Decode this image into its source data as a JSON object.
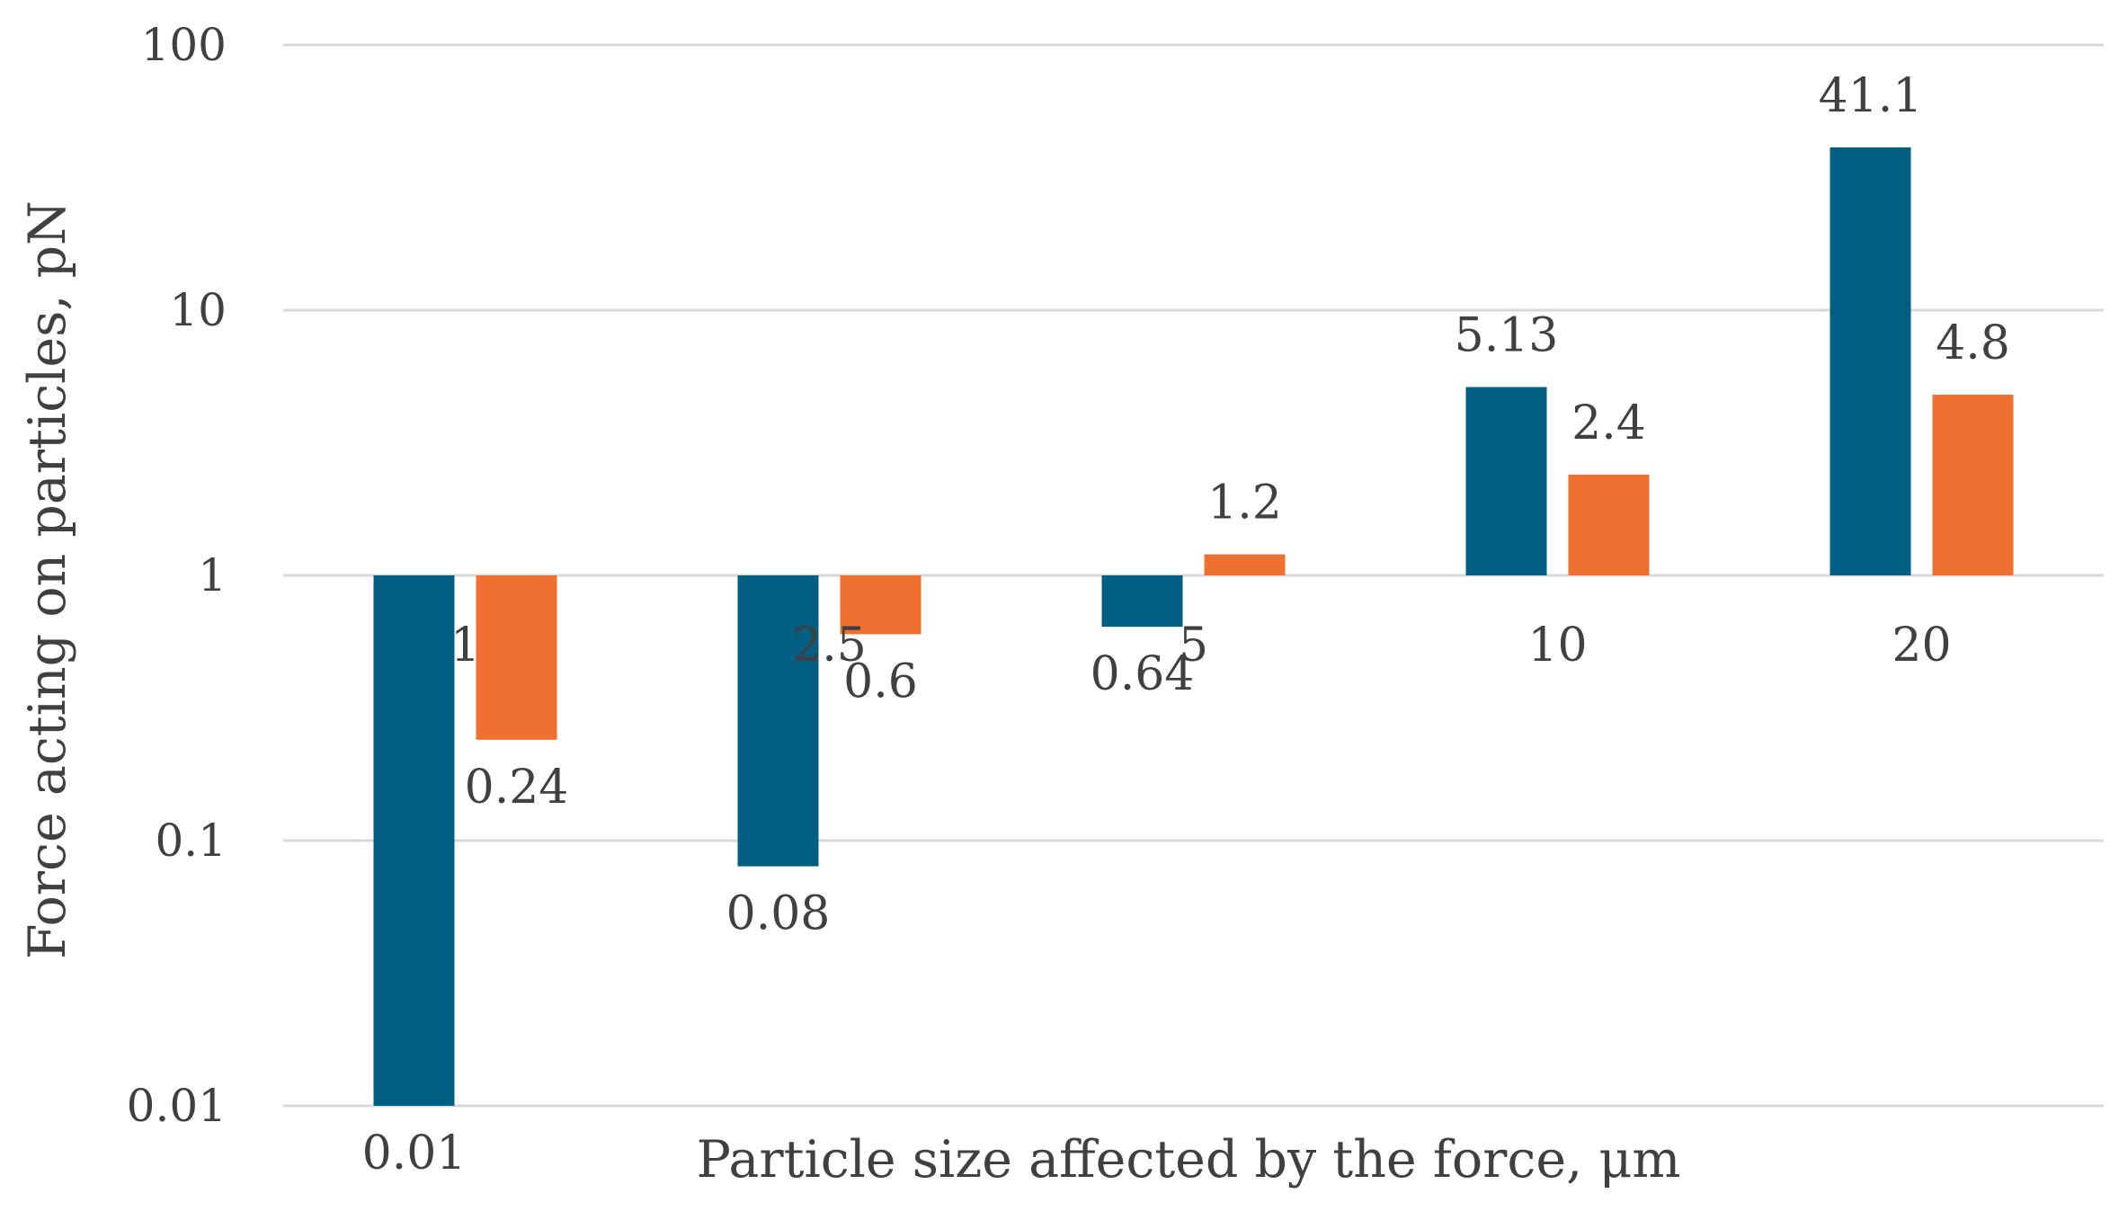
{
  "chart_data": {
    "type": "bar",
    "title": "",
    "xlabel": "Particle size affected by the force, μm",
    "ylabel": "Force acting on particles, pN",
    "yscale": "log",
    "ylim": [
      0.01,
      100
    ],
    "baseline": 1,
    "yticks": [
      {
        "value": 100,
        "label": "100"
      },
      {
        "value": 10,
        "label": "10"
      },
      {
        "value": 1,
        "label": "1"
      },
      {
        "value": 0.1,
        "label": "0.1"
      },
      {
        "value": 0.01,
        "label": "0.01"
      }
    ],
    "categories": [
      "1",
      "2.5",
      "5",
      "10",
      "20"
    ],
    "series": [
      {
        "name": "series-1",
        "color": "#005f83",
        "values": [
          0.01,
          0.08,
          0.64,
          5.13,
          41.1
        ],
        "labels": [
          "0.01",
          "0.08",
          "0.64",
          "5.13",
          "41.1"
        ]
      },
      {
        "name": "series-2",
        "color": "#f07032",
        "values": [
          0.24,
          0.6,
          1.2,
          2.4,
          4.8
        ],
        "labels": [
          "0.24",
          "0.6",
          "1.2",
          "2.4",
          "4.8"
        ]
      }
    ],
    "grid": true,
    "legend": "none"
  }
}
